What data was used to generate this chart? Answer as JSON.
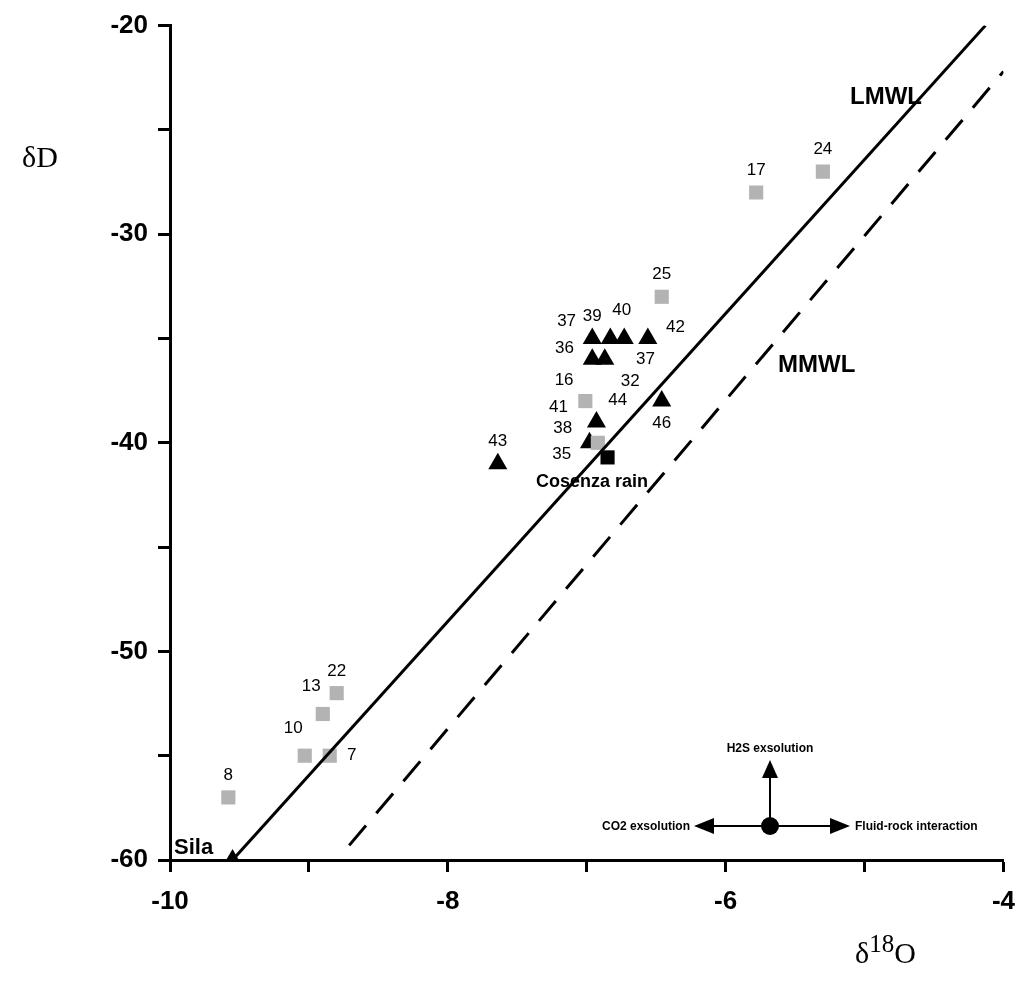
{
  "chart_data": {
    "type": "scatter",
    "xlabel": "δ$^{18}$O",
    "ylabel": "δD",
    "xlim": [
      -10,
      -4
    ],
    "ylim": [
      -60,
      -20
    ],
    "xticks": [
      -10,
      {
        "value": -9,
        "label": null
      },
      -8,
      {
        "value": -7,
        "label": null
      },
      -6,
      {
        "value": -5,
        "label": null
      },
      -4
    ],
    "yticks": [
      -60,
      {
        "value": -55,
        "label": null
      },
      -50,
      {
        "value": -45,
        "label": null
      },
      -40,
      {
        "value": -35,
        "label": null
      },
      -30,
      {
        "value": -25,
        "label": null
      },
      -20
    ],
    "grid": false,
    "legend": false,
    "series": [
      {
        "type": "line",
        "line_style": "solid",
        "marker": "none",
        "color": "#000000",
        "x": [
          -9.55,
          -4.13
        ],
        "values": [
          -60,
          -20
        ]
      },
      {
        "type": "line",
        "line_style": "dashed",
        "marker": "none",
        "color": "#000000",
        "x": [
          -8.71,
          -4
        ],
        "values": [
          -59.3,
          -22.2
        ]
      },
      {
        "marker": "square",
        "color": "#b3b3b3",
        "x": [
          -9.58,
          -9.03,
          -8.85,
          -8.9,
          -8.8,
          -5.78,
          -5.3,
          -6.46,
          -7.01,
          -6.92
        ],
        "values": [
          -57,
          -55,
          -55,
          -53,
          -52,
          -28,
          -27,
          -33,
          -38,
          -40
        ]
      },
      {
        "marker": "triangle",
        "color": "#000000",
        "x": [
          -9.55,
          -7.64,
          -6.46,
          -6.93,
          -6.98,
          -6.96,
          -6.83,
          -6.73,
          -6.56,
          -6.96,
          -6.87
        ],
        "values": [
          -60,
          -41,
          -38,
          -39,
          -40,
          -35,
          -35,
          -35,
          -35,
          -36,
          -36
        ]
      },
      {
        "marker": "square",
        "color": "#000000",
        "x": [
          -6.85
        ],
        "values": [
          -40.7
        ]
      }
    ],
    "annotations": [
      "H2S exsolution",
      "CO2 exsolution",
      "Fluid-rock interaction",
      "LMWL",
      "MMWL",
      "Sila",
      "Cosenza rain",
      {
        "text": "8",
        "x": -9.58,
        "y": -57
      },
      {
        "text": "10",
        "x": -9.03,
        "y": -55
      },
      {
        "text": "7",
        "x": -8.85,
        "y": -55
      },
      {
        "text": "13",
        "x": -8.9,
        "y": -53
      },
      {
        "text": "22",
        "x": -8.8,
        "y": -52
      },
      {
        "text": "17",
        "x": -5.78,
        "y": -28
      },
      {
        "text": "24",
        "x": -5.3,
        "y": -27
      },
      {
        "text": "25",
        "x": -6.46,
        "y": -33
      },
      {
        "text": "16",
        "x": -7.01,
        "y": -38
      },
      {
        "text": "38",
        "x": -6.92,
        "y": -40
      },
      {
        "text": "43",
        "x": -7.64,
        "y": -41
      },
      {
        "text": "46",
        "x": -6.46,
        "y": -38
      },
      {
        "text": "44",
        "x": -6.93,
        "y": -39
      },
      {
        "text": "41",
        "x": -6.95,
        "y": -39
      },
      {
        "text": "35",
        "x": -6.98,
        "y": -40
      },
      {
        "text": "39",
        "x": -6.96,
        "y": -35
      },
      {
        "text": "40",
        "x": -6.83,
        "y": -35
      },
      {
        "text": "37",
        "x": -6.73,
        "y": -35
      },
      {
        "text": "42",
        "x": -6.56,
        "y": -35
      },
      {
        "text": "32",
        "x": -6.56,
        "y": -35
      },
      {
        "text": "36",
        "x": -6.96,
        "y": -36
      },
      {
        "text": "37",
        "x": -6.87,
        "y": -36
      }
    ]
  }
}
